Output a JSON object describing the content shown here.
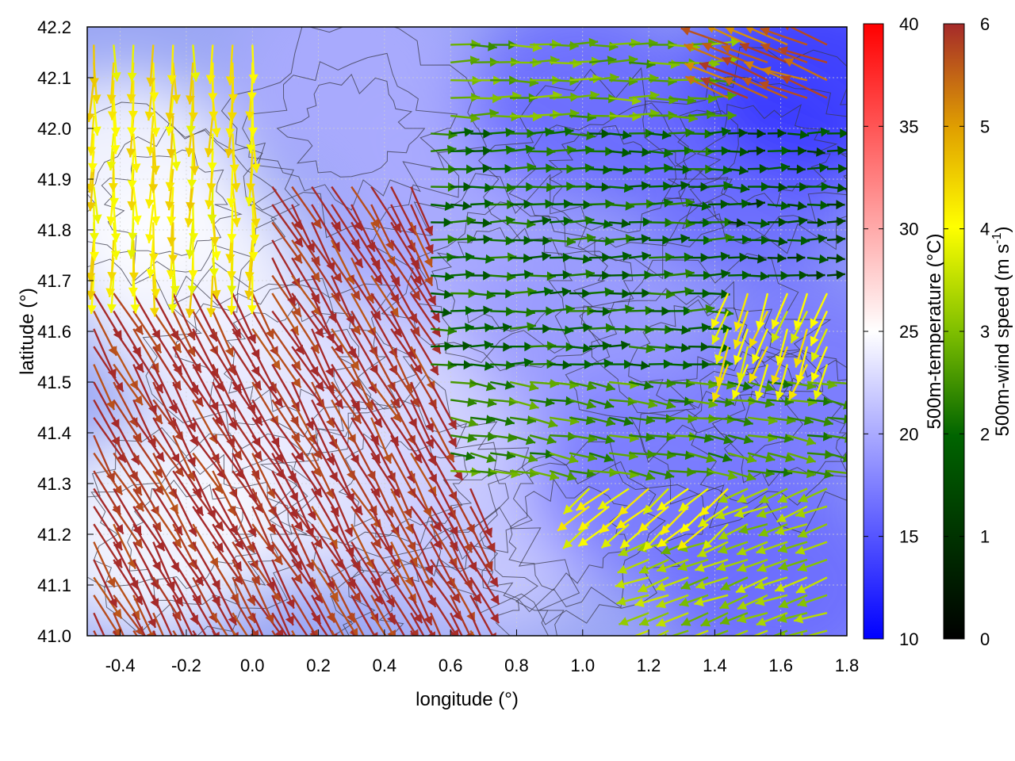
{
  "chart_data": {
    "type": "heatmap",
    "description_overlay": "vector field with contour lines",
    "xlabel": "longitude (°)",
    "ylabel": "latitude (°)",
    "xlim": [
      -0.5,
      1.8
    ],
    "ylim": [
      41.0,
      42.2
    ],
    "x_ticks": [
      "-0.4",
      "-0.2",
      "0.0",
      "0.2",
      "0.4",
      "0.6",
      "0.8",
      "1.0",
      "1.2",
      "1.4",
      "1.6",
      "1.8"
    ],
    "x_tick_values": [
      -0.4,
      -0.2,
      0.0,
      0.2,
      0.4,
      0.6,
      0.8,
      1.0,
      1.2,
      1.4,
      1.6,
      1.8
    ],
    "y_ticks": [
      "41.0",
      "41.1",
      "41.2",
      "41.3",
      "41.4",
      "41.5",
      "41.6",
      "41.7",
      "41.8",
      "41.9",
      "42.0",
      "42.1",
      "42.2"
    ],
    "y_tick_values": [
      41.0,
      41.1,
      41.2,
      41.3,
      41.4,
      41.5,
      41.6,
      41.7,
      41.8,
      41.9,
      42.0,
      42.1,
      42.2
    ],
    "grid": true,
    "colorbars": [
      {
        "label": "500m-temperature (°C)",
        "range": [
          10,
          40
        ],
        "ticks": [
          "10",
          "15",
          "20",
          "25",
          "30",
          "35",
          "40"
        ],
        "tick_values": [
          10,
          15,
          20,
          25,
          30,
          35,
          40
        ],
        "colors": [
          "#0000ff",
          "#ffffff",
          "#ff0000"
        ],
        "color_stops": [
          0,
          0.5,
          1
        ]
      },
      {
        "label_main": "500m-wind speed (m s",
        "label_sup": "-1",
        "label_end": ")",
        "range": [
          0,
          6
        ],
        "ticks": [
          "0",
          "1",
          "2",
          "3",
          "4",
          "5",
          "6"
        ],
        "tick_values": [
          0,
          1,
          2,
          3,
          4,
          5,
          6
        ],
        "colors": [
          "#000000",
          "#006400",
          "#7fbf00",
          "#ffff00",
          "#e0a000",
          "#a52a2a"
        ],
        "color_stops": [
          0,
          0.33,
          0.5,
          0.67,
          0.83,
          1
        ]
      }
    ],
    "temperature_regions": [
      {
        "lon": -0.4,
        "lat": 41.9,
        "value": 25
      },
      {
        "lon": -0.2,
        "lat": 41.7,
        "value": 25
      },
      {
        "lon": 0.0,
        "lat": 41.5,
        "value": 24
      },
      {
        "lon": 0.2,
        "lat": 41.3,
        "value": 24
      },
      {
        "lon": -0.3,
        "lat": 41.2,
        "value": 25
      },
      {
        "lon": 0.5,
        "lat": 41.5,
        "value": 23
      },
      {
        "lon": 0.7,
        "lat": 41.2,
        "value": 22
      },
      {
        "lon": 0.6,
        "lat": 41.8,
        "value": 20
      },
      {
        "lon": 1.0,
        "lat": 41.6,
        "value": 19
      },
      {
        "lon": 1.2,
        "lat": 41.3,
        "value": 17
      },
      {
        "lon": 1.6,
        "lat": 41.1,
        "value": 16
      },
      {
        "lon": 1.5,
        "lat": 41.9,
        "value": 16
      },
      {
        "lon": 1.7,
        "lat": 42.1,
        "value": 13
      },
      {
        "lon": 1.0,
        "lat": 42.05,
        "value": 16
      },
      {
        "lon": 0.3,
        "lat": 42.1,
        "value": 20
      },
      {
        "lon": 1.7,
        "lat": 41.5,
        "value": 17
      }
    ],
    "wind_regions": [
      {
        "lon_range": [
          -0.5,
          0.7
        ],
        "lat_range": [
          41.0,
          41.9
        ],
        "direction_deg": 150,
        "speed": 6
      },
      {
        "lon_range": [
          -0.5,
          0.0
        ],
        "lat_range": [
          41.7,
          42.2
        ],
        "direction_deg": 180,
        "speed": 4.2
      },
      {
        "lon_range": [
          0.5,
          1.5
        ],
        "lat_range": [
          41.5,
          42.0
        ],
        "direction_deg": 90,
        "speed": 2
      },
      {
        "lon_range": [
          1.4,
          1.8
        ],
        "lat_range": [
          41.7,
          42.0
        ],
        "direction_deg": 90,
        "speed": 1.5
      },
      {
        "lon_range": [
          1.2,
          1.8
        ],
        "lat_range": [
          41.0,
          41.3
        ],
        "direction_deg": 250,
        "speed": 3.2
      },
      {
        "lon_range": [
          1.0,
          1.5
        ],
        "lat_range": [
          41.2,
          41.4
        ],
        "direction_deg": 230,
        "speed": 4
      },
      {
        "lon_range": [
          0.6,
          1.8
        ],
        "lat_range": [
          41.3,
          41.5
        ],
        "direction_deg": 100,
        "speed": 2.5
      },
      {
        "lon_range": [
          1.4,
          1.8
        ],
        "lat_range": [
          41.5,
          41.7
        ],
        "direction_deg": 200,
        "speed": 4
      },
      {
        "lon_range": [
          0.6,
          1.4
        ],
        "lat_range": [
          42.0,
          42.2
        ],
        "direction_deg": 90,
        "speed": 2.8
      },
      {
        "lon_range": [
          1.4,
          1.8
        ],
        "lat_range": [
          42.05,
          42.2
        ],
        "direction_deg": 290,
        "speed": 5.5
      }
    ]
  }
}
